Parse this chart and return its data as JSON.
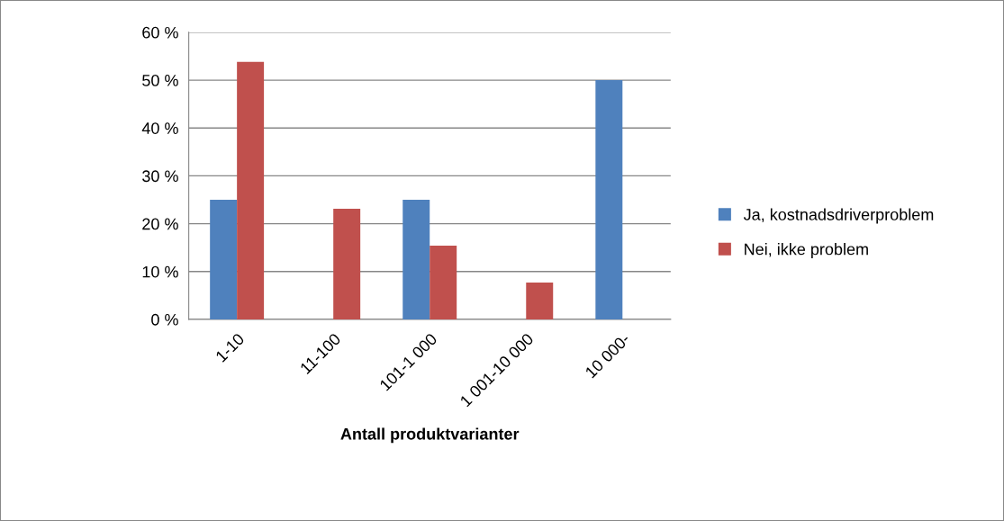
{
  "chart_data": {
    "type": "bar",
    "xlabel": "Antall produktvarianter",
    "categories": [
      "1-10",
      "11-100",
      "101-1 000",
      "1 001-10 000",
      "10 000-"
    ],
    "series": [
      {
        "name": "Ja, kostnadsdriverproblem",
        "color": "#4f81bd",
        "values": [
          25,
          0,
          25,
          0,
          50
        ]
      },
      {
        "name": "Nei, ikke problem",
        "color": "#c0504d",
        "values": [
          53.8,
          23.1,
          15.4,
          7.7,
          0
        ]
      }
    ],
    "ylim": [
      0,
      60
    ],
    "yticks": [
      {
        "value": 0,
        "label": "0 %"
      },
      {
        "value": 10,
        "label": "10 %"
      },
      {
        "value": 20,
        "label": "20 %"
      },
      {
        "value": 30,
        "label": "30 %"
      },
      {
        "value": 40,
        "label": "40 %"
      },
      {
        "value": 50,
        "label": "50 %"
      },
      {
        "value": 60,
        "label": "60 %"
      }
    ],
    "grid": "y",
    "legend": "right"
  }
}
